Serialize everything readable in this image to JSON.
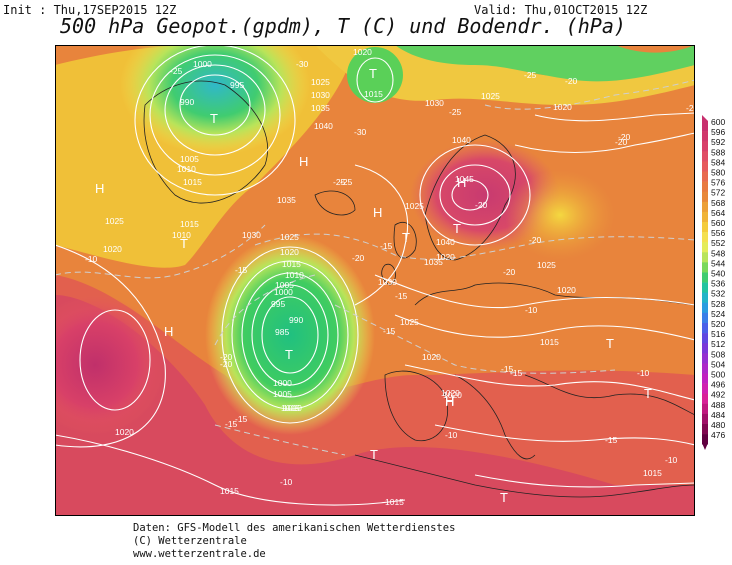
{
  "header": {
    "init": "Init : Thu,17SEP2015 12Z",
    "valid": "Valid: Thu,01OCT2015 12Z",
    "title": "500 hPa Geopot.(gpdm), T (C) und Bodendr. (hPa)"
  },
  "map": {
    "pressure_labels": [
      {
        "text": "1000"
      },
      {
        "text": "995"
      },
      {
        "text": "990"
      },
      {
        "text": "1005"
      },
      {
        "text": "1010"
      },
      {
        "text": "1015"
      },
      {
        "text": "1020"
      },
      {
        "text": "1015"
      },
      {
        "text": "1025"
      },
      {
        "text": "1030"
      },
      {
        "text": "1035"
      },
      {
        "text": "1040"
      },
      {
        "text": "1030"
      },
      {
        "text": "1025"
      },
      {
        "text": "1040"
      },
      {
        "text": "1045"
      },
      {
        "text": "1035"
      },
      {
        "text": "1040"
      },
      {
        "text": "1025"
      },
      {
        "text": "1025"
      },
      {
        "text": "1020"
      },
      {
        "text": "1015"
      },
      {
        "text": "1010"
      },
      {
        "text": "1025"
      },
      {
        "text": "1020"
      },
      {
        "text": "1015"
      },
      {
        "text": "1010"
      },
      {
        "text": "1005"
      },
      {
        "text": "1000"
      },
      {
        "text": "995"
      },
      {
        "text": "990"
      },
      {
        "text": "985"
      },
      {
        "text": "1000"
      },
      {
        "text": "1005"
      },
      {
        "text": "1010"
      },
      {
        "text": "1030"
      },
      {
        "text": "1025"
      },
      {
        "text": "1020"
      },
      {
        "text": "1020"
      },
      {
        "text": "1025"
      },
      {
        "text": "1020"
      },
      {
        "text": "1015"
      },
      {
        "text": "1020"
      },
      {
        "text": "1015"
      },
      {
        "text": "1015"
      },
      {
        "text": "1020"
      },
      {
        "text": "1015"
      },
      {
        "text": "1020"
      },
      {
        "text": "1035"
      },
      {
        "text": "1030"
      },
      {
        "text": "1015"
      },
      {
        "text": "1020"
      }
    ],
    "temp_labels": [
      {
        "text": "-25"
      },
      {
        "text": "-30"
      },
      {
        "text": "-25"
      },
      {
        "text": "-30"
      },
      {
        "text": "-20"
      },
      {
        "text": "-25"
      },
      {
        "text": "-20"
      },
      {
        "text": "-20"
      },
      {
        "text": "-25"
      },
      {
        "text": "-20"
      },
      {
        "text": "-15"
      },
      {
        "text": "-20"
      },
      {
        "text": "-15"
      },
      {
        "text": "-15"
      },
      {
        "text": "-10"
      },
      {
        "text": "-15"
      },
      {
        "text": "-20"
      },
      {
        "text": "-10"
      },
      {
        "text": "-15"
      },
      {
        "text": "-10"
      },
      {
        "text": "-10"
      },
      {
        "text": "-10"
      },
      {
        "text": "-10"
      },
      {
        "text": "-15"
      },
      {
        "text": "-20"
      },
      {
        "text": "-20"
      },
      {
        "text": "-25"
      },
      {
        "text": "-15"
      },
      {
        "text": "-20"
      },
      {
        "text": "-15"
      },
      {
        "text": "-20"
      },
      {
        "text": "-15"
      }
    ],
    "pressure_systems": [
      {
        "text": "T"
      },
      {
        "text": "T"
      },
      {
        "text": "H"
      },
      {
        "text": "H"
      },
      {
        "text": "T"
      },
      {
        "text": "H"
      },
      {
        "text": "T"
      },
      {
        "text": "H"
      },
      {
        "text": "T"
      },
      {
        "text": "H"
      },
      {
        "text": "T"
      },
      {
        "text": "T"
      },
      {
        "text": "T"
      },
      {
        "text": "T"
      },
      {
        "text": "T"
      },
      {
        "text": "H"
      },
      {
        "text": "H"
      }
    ]
  },
  "scale": {
    "labels": [
      "600",
      "596",
      "592",
      "588",
      "584",
      "580",
      "576",
      "572",
      "568",
      "564",
      "560",
      "556",
      "552",
      "548",
      "544",
      "540",
      "536",
      "532",
      "528",
      "524",
      "520",
      "516",
      "512",
      "508",
      "504",
      "500",
      "496",
      "492",
      "488",
      "484",
      "480",
      "476"
    ],
    "colors": [
      "#c8306e",
      "#d0386c",
      "#d8406a",
      "#e04e66",
      "#e65a5c",
      "#e86a4e",
      "#e87a40",
      "#e8883a",
      "#eca038",
      "#f0b438",
      "#f4cc3c",
      "#f4e050",
      "#e4ec5a",
      "#b8e45a",
      "#7ad85a",
      "#40cc70",
      "#22c4a0",
      "#22b4c8",
      "#2a9ce0",
      "#3a7ee8",
      "#4a60e8",
      "#6048e0",
      "#7a38d8",
      "#9430d0",
      "#ac28c8",
      "#c020c0",
      "#d020b0",
      "#d82098",
      "#c01880",
      "#a01068",
      "#800850",
      "#600040"
    ]
  },
  "footer": {
    "line1": "Daten: GFS-Modell des amerikanischen Wetterdienstes",
    "line2": "(C) Wetterzentrale",
    "line3": "www.wetterzentrale.de"
  }
}
